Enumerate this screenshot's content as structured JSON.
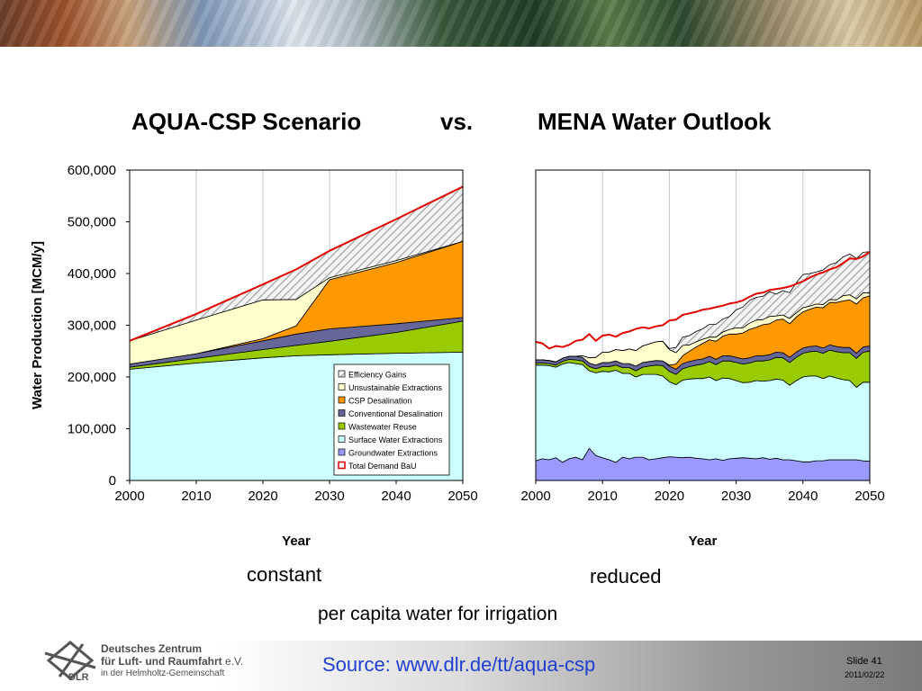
{
  "title": {
    "left": "AQUA-CSP Scenario",
    "mid": "vs.",
    "right": "MENA Water Outlook"
  },
  "chart_data": [
    {
      "type": "area",
      "stacked": true,
      "title": "AQUA-CSP Scenario",
      "x": [
        2000,
        2010,
        2020,
        2025,
        2030,
        2040,
        2050
      ],
      "series": [
        {
          "name": "Groundwater Extractions",
          "color": "#9999ff",
          "values": [
            0,
            0,
            0,
            0,
            0,
            0,
            0
          ]
        },
        {
          "name": "Surface Water Extractions",
          "color": "#ccffff",
          "values": [
            215000,
            227000,
            237000,
            241000,
            243000,
            246000,
            248000
          ]
        },
        {
          "name": "Wastewater Reuse",
          "color": "#99cc00",
          "values": [
            4000,
            9000,
            16000,
            20000,
            26000,
            40000,
            60000
          ]
        },
        {
          "name": "Conventional Desalination",
          "color": "#666699",
          "values": [
            6000,
            9000,
            17000,
            22000,
            24000,
            17000,
            7000
          ]
        },
        {
          "name": "CSP Desalination",
          "color": "#ff9900",
          "values": [
            0,
            0,
            4000,
            16000,
            95000,
            118000,
            147000
          ]
        },
        {
          "name": "Unsustainable Extractions",
          "color": "#ffffcc",
          "values": [
            45000,
            65000,
            75000,
            51000,
            4000,
            4000,
            0
          ]
        },
        {
          "name": "Efficiency Gains",
          "color": "#e8e8e8",
          "pattern": "hatch",
          "values": [
            0,
            12000,
            30000,
            58000,
            52000,
            80000,
            106000
          ]
        }
      ],
      "total_demand_bau": {
        "name": "Total Demand BaU",
        "color": "#e00000",
        "values": [
          270000,
          322000,
          379000,
          408000,
          444000,
          505000,
          568000
        ]
      },
      "xlabel": "Year",
      "ylabel": "Water Production [MCM/y]",
      "xlim": [
        2000,
        2050
      ],
      "ylim": [
        0,
        600000
      ],
      "xticks": [
        "2000",
        "2010",
        "2020",
        "2030",
        "2040",
        "2050"
      ],
      "yticks": [
        "0",
        "100,000",
        "200,000",
        "300,000",
        "400,000",
        "500,000",
        "600,000"
      ],
      "legend": [
        "Efficiency Gains",
        "Unsustainable Extractions",
        "CSP Desalination",
        "Conventional Desalination",
        "Wastewater Reuse",
        "Surface Water Extractions",
        "Groundwater Extractions",
        "Total Demand BaU"
      ],
      "legend_position": "bottom-right",
      "grid": "vertical"
    },
    {
      "type": "area",
      "stacked": true,
      "title": "MENA Water Outlook",
      "x": [
        2000,
        2001,
        2002,
        2003,
        2004,
        2005,
        2006,
        2007,
        2008,
        2009,
        2010,
        2011,
        2012,
        2013,
        2014,
        2015,
        2016,
        2017,
        2018,
        2019,
        2020,
        2021,
        2022,
        2023,
        2024,
        2025,
        2026,
        2027,
        2028,
        2029,
        2030,
        2031,
        2032,
        2033,
        2034,
        2035,
        2036,
        2037,
        2038,
        2039,
        2040,
        2041,
        2042,
        2043,
        2044,
        2045,
        2046,
        2047,
        2048,
        2049,
        2050
      ],
      "series": [
        {
          "name": "Groundwater Extractions",
          "color": "#9999ff",
          "values": [
            38000,
            42000,
            40000,
            44000,
            35000,
            42000,
            45000,
            40000,
            62000,
            48000,
            44000,
            40000,
            35000,
            45000,
            42000,
            45000,
            45000,
            40000,
            42000,
            44000,
            46000,
            45000,
            44000,
            45000,
            43000,
            42000,
            40000,
            42000,
            39000,
            42000,
            43000,
            44000,
            43000,
            42000,
            44000,
            41000,
            43000,
            40000,
            40000,
            38000,
            36000,
            36000,
            38000,
            38000,
            40000,
            40000,
            40000,
            40000,
            40000,
            38000,
            37000
          ]
        },
        {
          "name": "Surface Water Extractions",
          "color": "#ccffff",
          "values": [
            185000,
            181000,
            182000,
            175000,
            190000,
            186000,
            181000,
            184000,
            150000,
            160000,
            167000,
            170000,
            178000,
            162000,
            165000,
            155000,
            160000,
            165000,
            163000,
            158000,
            145000,
            140000,
            150000,
            151000,
            154000,
            155000,
            160000,
            151000,
            159000,
            155000,
            150000,
            145000,
            147000,
            151000,
            148000,
            152000,
            153000,
            154000,
            144000,
            155000,
            164000,
            166000,
            164000,
            159000,
            162000,
            158000,
            155000,
            153000,
            140000,
            152000,
            153000
          ]
        },
        {
          "name": "Wastewater Reuse",
          "color": "#99cc00",
          "values": [
            4000,
            4000,
            4000,
            4000,
            5000,
            6000,
            7000,
            7000,
            8000,
            8000,
            9000,
            10000,
            10000,
            11000,
            11000,
            12000,
            14000,
            16000,
            18000,
            20000,
            20000,
            20000,
            22000,
            24000,
            26000,
            28000,
            30000,
            31000,
            33000,
            34000,
            35000,
            36000,
            37000,
            38000,
            39000,
            40000,
            42000,
            43000,
            44000,
            45000,
            46000,
            47000,
            48000,
            49000,
            50000,
            51000,
            52000,
            54000,
            56000,
            58000,
            60000
          ]
        },
        {
          "name": "Conventional Desalination",
          "color": "#666699",
          "values": [
            6000,
            6000,
            6000,
            6000,
            6000,
            6000,
            7000,
            7000,
            7000,
            7000,
            8000,
            8000,
            8000,
            8000,
            8000,
            9000,
            9000,
            9000,
            9000,
            9000,
            10000,
            10000,
            10000,
            10000,
            10000,
            10000,
            10000,
            10000,
            10000,
            10000,
            10000,
            10000,
            10000,
            10000,
            10000,
            10000,
            10000,
            10000,
            10000,
            10000,
            10000,
            10000,
            10000,
            10000,
            10000,
            10000,
            10000,
            10000,
            10000,
            10000,
            10000
          ]
        },
        {
          "name": "CSP Desalination",
          "color": "#ff9900",
          "values": [
            0,
            0,
            0,
            0,
            0,
            0,
            0,
            0,
            0,
            0,
            0,
            0,
            0,
            0,
            0,
            0,
            0,
            0,
            0,
            0,
            2000,
            10000,
            15000,
            20000,
            25000,
            30000,
            32000,
            35000,
            38000,
            42000,
            45000,
            50000,
            55000,
            55000,
            60000,
            60000,
            62000,
            65000,
            65000,
            68000,
            70000,
            72000,
            75000,
            78000,
            82000,
            85000,
            90000,
            92000,
            95000,
            95000,
            97000
          ]
        },
        {
          "name": "Unsustainable Extractions",
          "color": "#ffffcc",
          "values": [
            0,
            0,
            0,
            0,
            0,
            0,
            0,
            3000,
            10000,
            15000,
            20000,
            20000,
            22000,
            25000,
            28000,
            30000,
            32000,
            34000,
            36000,
            38000,
            30000,
            22000,
            20000,
            12000,
            10000,
            8000,
            5000,
            8000,
            8000,
            9000,
            12000,
            10000,
            12000,
            14000,
            10000,
            14000,
            8000,
            8000,
            10000,
            8000,
            8000,
            6000,
            6000,
            6000,
            6000,
            5000,
            10000,
            10000,
            10000,
            10000,
            5000
          ]
        },
        {
          "name": "Efficiency Gains",
          "color": "#e8e8e8",
          "pattern": "hatch",
          "values": [
            0,
            0,
            0,
            0,
            0,
            0,
            0,
            0,
            0,
            0,
            0,
            0,
            0,
            0,
            0,
            0,
            0,
            0,
            0,
            0,
            2000,
            10000,
            16000,
            18000,
            20000,
            20000,
            25000,
            25000,
            25000,
            25000,
            35000,
            40000,
            44000,
            44000,
            45000,
            48000,
            42000,
            47000,
            50000,
            58000,
            64000,
            63000,
            62000,
            67000,
            67000,
            72000,
            75000,
            79000,
            78000,
            78000,
            80000
          ]
        }
      ],
      "total_demand_bau": {
        "name": "Total Demand BaU",
        "color": "#e00000",
        "values": [
          268000,
          265000,
          255000,
          260000,
          258000,
          262000,
          270000,
          272000,
          283000,
          270000,
          280000,
          282000,
          278000,
          285000,
          288000,
          293000,
          296000,
          294000,
          298000,
          300000,
          309000,
          311000,
          320000,
          323000,
          326000,
          330000,
          332000,
          335000,
          338000,
          342000,
          344000,
          348000,
          355000,
          361000,
          363000,
          368000,
          370000,
          372000,
          375000,
          380000,
          385000,
          392000,
          398000,
          402000,
          408000,
          412000,
          420000,
          429000,
          428000,
          433000,
          442000
        ]
      },
      "xlabel": "Year",
      "xlim": [
        2000,
        2050
      ],
      "ylim": [
        0,
        600000
      ],
      "xticks": [
        "2000",
        "2010",
        "2020",
        "2030",
        "2040",
        "2050"
      ],
      "grid": "vertical"
    }
  ],
  "captions": {
    "left": "constant",
    "right": "reduced",
    "bottom": "per capita water for irrigation"
  },
  "footer": {
    "org_line1": "Deutsches Zentrum",
    "org_line2a": "für Luft- und Raumfahrt",
    "org_line2b": " e.V.",
    "org_line3": "in der Helmholtz-Gemeinschaft",
    "logo_text": "DLR",
    "source": "Source: www.dlr.de/tt/aqua-csp",
    "slide": "Slide 41",
    "date": "2011/02/22"
  }
}
